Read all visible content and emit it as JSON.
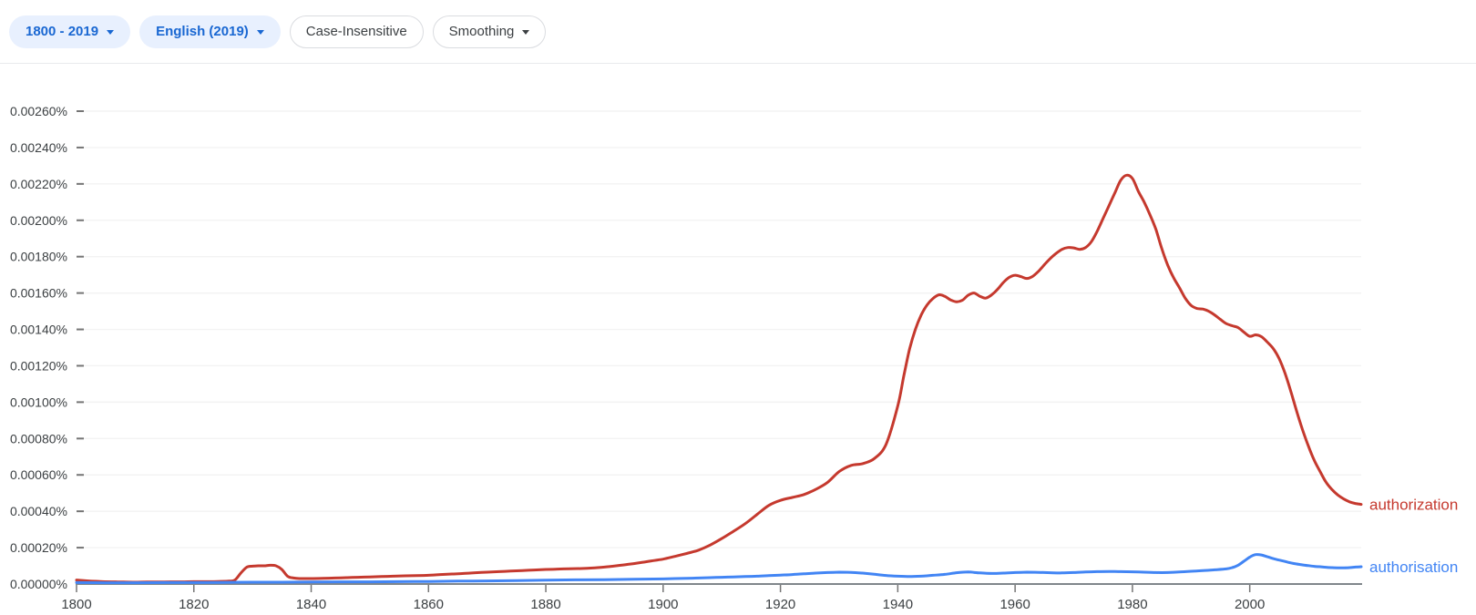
{
  "toolbar": {
    "chips": [
      {
        "label": "1800 - 2019",
        "has_caret": true,
        "style": "tonal"
      },
      {
        "label": "English (2019)",
        "has_caret": true,
        "style": "tonal"
      },
      {
        "label": "Case-Insensitive",
        "has_caret": false,
        "style": "outlined"
      },
      {
        "label": "Smoothing",
        "has_caret": true,
        "style": "outlined"
      }
    ]
  },
  "colors": {
    "chip_tonal_bg": "#e8f0fe",
    "chip_tonal_text": "#1967d2",
    "chip_outlined_border": "#dadce0",
    "chip_outlined_text": "#3c4043",
    "axis_line": "#80868b",
    "tick_mark": "#757575",
    "grid_line": "#f3f3f3",
    "axis_text": "#3c4043",
    "divider": "#e8eaed",
    "series_red": "#c5392e",
    "series_blue": "#4285f4"
  },
  "chart_data": {
    "type": "line",
    "title": "",
    "grid": true,
    "legend_position": "line-end",
    "x_axis": {
      "min": 1800,
      "max": 2019,
      "tick_years": [
        1800,
        1820,
        1840,
        1860,
        1880,
        1900,
        1920,
        1940,
        1960,
        1980,
        2000
      ]
    },
    "y_axis": {
      "min": 0,
      "max": 0.0026,
      "tick_step": 0.0002,
      "tick_labels": [
        "0.00000%",
        "0.00020%",
        "0.00040%",
        "0.00060%",
        "0.00080%",
        "0.00100%",
        "0.00120%",
        "0.00140%",
        "0.00160%",
        "0.00180%",
        "0.00200%",
        "0.00220%",
        "0.00240%",
        "0.00260%"
      ]
    },
    "series": [
      {
        "name": "authorization",
        "color": "#c5392e",
        "points": [
          [
            1800,
            2.2e-05
          ],
          [
            1802,
            1.7e-05
          ],
          [
            1804,
            1.4e-05
          ],
          [
            1806,
            1.2e-05
          ],
          [
            1808,
            1.1e-05
          ],
          [
            1810,
            1e-05
          ],
          [
            1812,
            1.1e-05
          ],
          [
            1814,
            1.1e-05
          ],
          [
            1816,
            1.2e-05
          ],
          [
            1818,
            1.2e-05
          ],
          [
            1820,
            1.3e-05
          ],
          [
            1822,
            1.3e-05
          ],
          [
            1824,
            1.4e-05
          ],
          [
            1826,
            1.6e-05
          ],
          [
            1827,
            2.2e-05
          ],
          [
            1828,
            6e-05
          ],
          [
            1829,
            9.2e-05
          ],
          [
            1830,
            9.8e-05
          ],
          [
            1831,
            0.0001
          ],
          [
            1832,
            0.0001
          ],
          [
            1833,
            0.000103
          ],
          [
            1834,
            0.0001
          ],
          [
            1835,
            8e-05
          ],
          [
            1836,
            4.2e-05
          ],
          [
            1837,
            3.3e-05
          ],
          [
            1838,
            3e-05
          ],
          [
            1840,
            3e-05
          ],
          [
            1842,
            3.1e-05
          ],
          [
            1844,
            3.3e-05
          ],
          [
            1846,
            3.5e-05
          ],
          [
            1848,
            3.7e-05
          ],
          [
            1850,
            3.9e-05
          ],
          [
            1852,
            4.1e-05
          ],
          [
            1854,
            4.3e-05
          ],
          [
            1856,
            4.5e-05
          ],
          [
            1858,
            4.6e-05
          ],
          [
            1860,
            4.8e-05
          ],
          [
            1862,
            5.2e-05
          ],
          [
            1864,
            5.5e-05
          ],
          [
            1866,
            5.8e-05
          ],
          [
            1868,
            6.2e-05
          ],
          [
            1870,
            6.5e-05
          ],
          [
            1872,
            6.8e-05
          ],
          [
            1874,
            7.1e-05
          ],
          [
            1876,
            7.4e-05
          ],
          [
            1878,
            7.7e-05
          ],
          [
            1880,
            8e-05
          ],
          [
            1882,
            8.2e-05
          ],
          [
            1884,
            8.4e-05
          ],
          [
            1886,
            8.5e-05
          ],
          [
            1888,
            8.8e-05
          ],
          [
            1890,
            9.3e-05
          ],
          [
            1892,
            0.0001
          ],
          [
            1894,
            0.000108
          ],
          [
            1896,
            0.000117
          ],
          [
            1898,
            0.000127
          ],
          [
            1900,
            0.000137
          ],
          [
            1902,
            0.000152
          ],
          [
            1904,
            0.000168
          ],
          [
            1906,
            0.000186
          ],
          [
            1908,
            0.000214
          ],
          [
            1910,
            0.00025
          ],
          [
            1912,
            0.00029
          ],
          [
            1914,
            0.000332
          ],
          [
            1916,
            0.000382
          ],
          [
            1918,
            0.000432
          ],
          [
            1920,
            0.00046
          ],
          [
            1922,
            0.000476
          ],
          [
            1924,
            0.000492
          ],
          [
            1926,
            0.00052
          ],
          [
            1928,
            0.000558
          ],
          [
            1930,
            0.000618
          ],
          [
            1932,
            0.000652
          ],
          [
            1934,
            0.000662
          ],
          [
            1936,
            0.00069
          ],
          [
            1938,
            0.000768
          ],
          [
            1940,
            0.00098
          ],
          [
            1941,
            0.00114
          ],
          [
            1942,
            0.00129
          ],
          [
            1943,
            0.0014
          ],
          [
            1944,
            0.00148
          ],
          [
            1945,
            0.001535
          ],
          [
            1946,
            0.00157
          ],
          [
            1947,
            0.00159
          ],
          [
            1948,
            0.001582
          ],
          [
            1949,
            0.001562
          ],
          [
            1950,
            0.001552
          ],
          [
            1951,
            0.00156
          ],
          [
            1952,
            0.001588
          ],
          [
            1953,
            0.0016
          ],
          [
            1954,
            0.001582
          ],
          [
            1955,
            0.001572
          ],
          [
            1956,
            0.00159
          ],
          [
            1957,
            0.00162
          ],
          [
            1958,
            0.001658
          ],
          [
            1959,
            0.001686
          ],
          [
            1960,
            0.001698
          ],
          [
            1961,
            0.00169
          ],
          [
            1962,
            0.00168
          ],
          [
            1963,
            0.001692
          ],
          [
            1964,
            0.00172
          ],
          [
            1965,
            0.001756
          ],
          [
            1966,
            0.00179
          ],
          [
            1967,
            0.001818
          ],
          [
            1968,
            0.00184
          ],
          [
            1969,
            0.00185
          ],
          [
            1970,
            0.001848
          ],
          [
            1971,
            0.00184
          ],
          [
            1972,
            0.00185
          ],
          [
            1973,
            0.001882
          ],
          [
            1974,
            0.00194
          ],
          [
            1975,
            0.00201
          ],
          [
            1976,
            0.00208
          ],
          [
            1977,
            0.00215
          ],
          [
            1978,
            0.00222
          ],
          [
            1979,
            0.002248
          ],
          [
            1980,
            0.00223
          ],
          [
            1981,
            0.00216
          ],
          [
            1982,
            0.0021
          ],
          [
            1983,
            0.00203
          ],
          [
            1984,
            0.00195
          ],
          [
            1985,
            0.001845
          ],
          [
            1986,
            0.001755
          ],
          [
            1987,
            0.001685
          ],
          [
            1988,
            0.00163
          ],
          [
            1989,
            0.001572
          ],
          [
            1990,
            0.001532
          ],
          [
            1991,
            0.001515
          ],
          [
            1992,
            0.001512
          ],
          [
            1993,
            0.0015
          ],
          [
            1994,
            0.00148
          ],
          [
            1995,
            0.001455
          ],
          [
            1996,
            0.001432
          ],
          [
            1997,
            0.00142
          ],
          [
            1998,
            0.00141
          ],
          [
            1999,
            0.001385
          ],
          [
            2000,
            0.001362
          ],
          [
            2001,
            0.00137
          ],
          [
            2002,
            0.00136
          ],
          [
            2003,
            0.00133
          ],
          [
            2004,
            0.001295
          ],
          [
            2005,
            0.00124
          ],
          [
            2006,
            0.00116
          ],
          [
            2007,
            0.00106
          ],
          [
            2008,
            0.00095
          ],
          [
            2009,
            0.000848
          ],
          [
            2010,
            0.000758
          ],
          [
            2011,
            0.00068
          ],
          [
            2012,
            0.000618
          ],
          [
            2013,
            0.00056
          ],
          [
            2014,
            0.00052
          ],
          [
            2015,
            0.00049
          ],
          [
            2016,
            0.000468
          ],
          [
            2017,
            0.000452
          ],
          [
            2018,
            0.000443
          ],
          [
            2019,
            0.000438
          ]
        ]
      },
      {
        "name": "authorisation",
        "color": "#4285f4",
        "points": [
          [
            1800,
            8e-06
          ],
          [
            1805,
            7e-06
          ],
          [
            1810,
            7e-06
          ],
          [
            1815,
            8e-06
          ],
          [
            1820,
            8e-06
          ],
          [
            1825,
            9e-06
          ],
          [
            1830,
            1e-05
          ],
          [
            1835,
            1e-05
          ],
          [
            1840,
            1.1e-05
          ],
          [
            1845,
            1.2e-05
          ],
          [
            1850,
            1.2e-05
          ],
          [
            1855,
            1.3e-05
          ],
          [
            1860,
            1.4e-05
          ],
          [
            1865,
            1.6e-05
          ],
          [
            1870,
            1.7e-05
          ],
          [
            1875,
            1.9e-05
          ],
          [
            1880,
            2.1e-05
          ],
          [
            1885,
            2.3e-05
          ],
          [
            1890,
            2.4e-05
          ],
          [
            1895,
            2.6e-05
          ],
          [
            1900,
            2.8e-05
          ],
          [
            1902,
            3e-05
          ],
          [
            1904,
            3.1e-05
          ],
          [
            1906,
            3.3e-05
          ],
          [
            1908,
            3.5e-05
          ],
          [
            1910,
            3.7e-05
          ],
          [
            1912,
            3.9e-05
          ],
          [
            1914,
            4.1e-05
          ],
          [
            1916,
            4.3e-05
          ],
          [
            1918,
            4.6e-05
          ],
          [
            1920,
            4.9e-05
          ],
          [
            1922,
            5.2e-05
          ],
          [
            1924,
            5.6e-05
          ],
          [
            1926,
            6e-05
          ],
          [
            1928,
            6.3e-05
          ],
          [
            1930,
            6.5e-05
          ],
          [
            1932,
            6.4e-05
          ],
          [
            1934,
            6e-05
          ],
          [
            1936,
            5.4e-05
          ],
          [
            1938,
            4.7e-05
          ],
          [
            1940,
            4.3e-05
          ],
          [
            1942,
            4.1e-05
          ],
          [
            1944,
            4.3e-05
          ],
          [
            1946,
            4.8e-05
          ],
          [
            1948,
            5.3e-05
          ],
          [
            1950,
            6.2e-05
          ],
          [
            1952,
            6.6e-05
          ],
          [
            1954,
            6.1e-05
          ],
          [
            1956,
            5.8e-05
          ],
          [
            1958,
            6e-05
          ],
          [
            1960,
            6.3e-05
          ],
          [
            1962,
            6.5e-05
          ],
          [
            1964,
            6.4e-05
          ],
          [
            1966,
            6.2e-05
          ],
          [
            1968,
            6.1e-05
          ],
          [
            1970,
            6.3e-05
          ],
          [
            1972,
            6.6e-05
          ],
          [
            1974,
            6.8e-05
          ],
          [
            1976,
            6.9e-05
          ],
          [
            1978,
            6.8e-05
          ],
          [
            1980,
            6.7e-05
          ],
          [
            1982,
            6.5e-05
          ],
          [
            1984,
            6.3e-05
          ],
          [
            1986,
            6.3e-05
          ],
          [
            1988,
            6.6e-05
          ],
          [
            1990,
            7e-05
          ],
          [
            1992,
            7.4e-05
          ],
          [
            1994,
            7.8e-05
          ],
          [
            1996,
            8.3e-05
          ],
          [
            1997,
            9e-05
          ],
          [
            1998,
            0.000103
          ],
          [
            1999,
            0.000125
          ],
          [
            2000,
            0.000148
          ],
          [
            2001,
            0.000162
          ],
          [
            2002,
            0.00016
          ],
          [
            2003,
            0.00015
          ],
          [
            2004,
            0.00014
          ],
          [
            2005,
            0.000132
          ],
          [
            2006,
            0.000124
          ],
          [
            2007,
            0.000116
          ],
          [
            2008,
            0.00011
          ],
          [
            2009,
            0.000105
          ],
          [
            2010,
            0.000101
          ],
          [
            2011,
            9.7e-05
          ],
          [
            2012,
            9.5e-05
          ],
          [
            2013,
            9.2e-05
          ],
          [
            2014,
            9e-05
          ],
          [
            2015,
            8.9e-05
          ],
          [
            2016,
            8.9e-05
          ],
          [
            2017,
            9e-05
          ],
          [
            2018,
            9.3e-05
          ],
          [
            2019,
            9.5e-05
          ]
        ]
      }
    ]
  }
}
